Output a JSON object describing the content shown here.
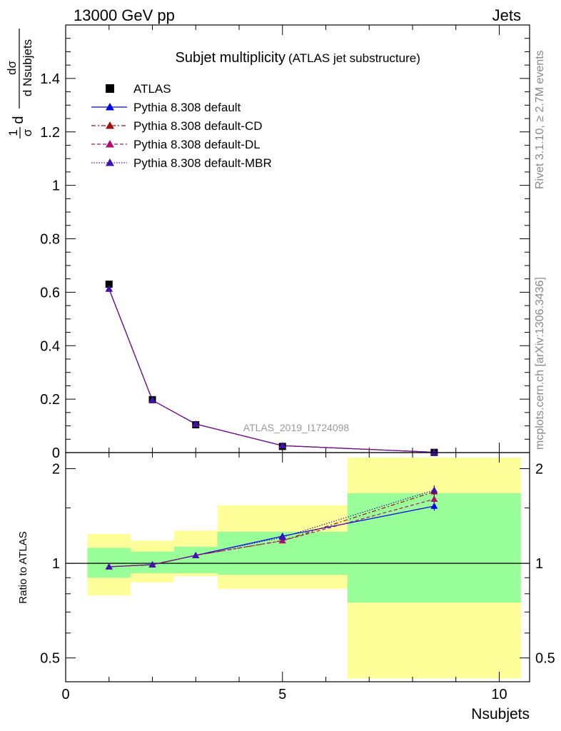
{
  "header": {
    "left": "13000 GeV pp",
    "right": "Jets"
  },
  "side_labels": {
    "rivet": "Rivet 3.1.10, ≥ 2.7M events",
    "mcplots": "mcplots.cern.ch [arXiv:1306.3436]"
  },
  "chart_data": [
    {
      "type": "line",
      "panel": "main",
      "title": "Subjet multiplicity",
      "subtitle": "(ATLAS jet substructure)",
      "analysis_tag": "ATLAS_2019_I1724098",
      "ylabel": {
        "frac": "1",
        "den": "σ",
        "dnum": "dσ",
        "dden": "d Nsubjets"
      },
      "xlim": [
        0,
        10.7
      ],
      "ylim": [
        0,
        1.6
      ],
      "yticks": [
        0,
        0.2,
        0.4,
        0.6,
        0.8,
        1,
        1.2,
        1.4
      ],
      "ytick_labels": [
        "0",
        "0.2",
        "0.4",
        "0.6",
        "0.8",
        "1",
        "1.2",
        "1.4"
      ],
      "legend_position": "top-left",
      "legend": [
        {
          "label": "ATLAS",
          "color": "#000000",
          "style": "marker-square"
        },
        {
          "label": "Pythia 8.308 default",
          "color": "#0000ee",
          "style": "solid"
        },
        {
          "label": "Pythia 8.308 default-CD",
          "color": "#a01010",
          "style": "dashdot"
        },
        {
          "label": "Pythia 8.308 default-DL",
          "color": "#b0106e",
          "style": "dashed"
        },
        {
          "label": "Pythia 8.308 default-MBR",
          "color": "#4010b0",
          "style": "dotted"
        }
      ],
      "data": {
        "name": "ATLAS",
        "points": [
          {
            "x": 1,
            "y": 0.63
          },
          {
            "x": 2,
            "y": 0.198
          },
          {
            "x": 3,
            "y": 0.104
          },
          {
            "x": 5,
            "y": 0.023
          },
          {
            "x": 8.5,
            "y": 0.0008
          }
        ]
      },
      "series": [
        {
          "name": "Pythia 8.308 default",
          "color": "#0000ee",
          "dash": "",
          "points": [
            {
              "x": 1,
              "y": 0.613
            },
            {
              "x": 2,
              "y": 0.196
            },
            {
              "x": 3,
              "y": 0.107
            },
            {
              "x": 5,
              "y": 0.026
            },
            {
              "x": 8.5,
              "y": 0.0012
            }
          ]
        },
        {
          "name": "Pythia 8.308 default-CD",
          "color": "#a01010",
          "dash": "6,3,2,3",
          "points": [
            {
              "x": 1,
              "y": 0.612
            },
            {
              "x": 2,
              "y": 0.196
            },
            {
              "x": 3,
              "y": 0.107
            },
            {
              "x": 5,
              "y": 0.026
            },
            {
              "x": 8.5,
              "y": 0.0014
            }
          ]
        },
        {
          "name": "Pythia 8.308 default-DL",
          "color": "#b0106e",
          "dash": "5,3",
          "points": [
            {
              "x": 1,
              "y": 0.612
            },
            {
              "x": 2,
              "y": 0.196
            },
            {
              "x": 3,
              "y": 0.107
            },
            {
              "x": 5,
              "y": 0.026
            },
            {
              "x": 8.5,
              "y": 0.0013
            }
          ]
        },
        {
          "name": "Pythia 8.308 default-MBR",
          "color": "#4010b0",
          "dash": "1.5,2",
          "points": [
            {
              "x": 1,
              "y": 0.612
            },
            {
              "x": 2,
              "y": 0.196
            },
            {
              "x": 3,
              "y": 0.107
            },
            {
              "x": 5,
              "y": 0.026
            },
            {
              "x": 8.5,
              "y": 0.0014
            }
          ]
        }
      ]
    },
    {
      "type": "line",
      "panel": "ratio",
      "xlabel": "Nsubjets",
      "ylabel": "Ratio to ATLAS",
      "xlim": [
        0,
        10.7
      ],
      "ylim": [
        0.42,
        2.25
      ],
      "log_y": true,
      "xticks": [
        0,
        5,
        10
      ],
      "xtick_labels": [
        "0",
        "5",
        "10"
      ],
      "yticks": [
        0.5,
        1,
        2
      ],
      "ytick_labels": [
        "0.5",
        "1",
        "2"
      ],
      "uncertainty_bands": [
        {
          "x0": 0.5,
          "x1": 1.5,
          "stat_lo": 0.9,
          "stat_hi": 1.12,
          "tot_lo": 0.79,
          "tot_hi": 1.24
        },
        {
          "x0": 1.5,
          "x1": 2.5,
          "stat_lo": 0.93,
          "stat_hi": 1.09,
          "tot_lo": 0.87,
          "tot_hi": 1.18
        },
        {
          "x0": 2.5,
          "x1": 3.5,
          "stat_lo": 0.93,
          "stat_hi": 1.13,
          "tot_lo": 0.91,
          "tot_hi": 1.27
        },
        {
          "x0": 3.5,
          "x1": 6.5,
          "stat_lo": 0.92,
          "stat_hi": 1.26,
          "tot_lo": 0.83,
          "tot_hi": 1.53
        },
        {
          "x0": 6.5,
          "x1": 10.5,
          "stat_lo": 0.75,
          "stat_hi": 1.67,
          "tot_lo": 0.43,
          "tot_hi": 2.17
        }
      ],
      "series": [
        {
          "name": "Pythia 8.308 default",
          "color": "#0000ee",
          "dash": "",
          "points": [
            {
              "x": 1,
              "y": 0.975
            },
            {
              "x": 2,
              "y": 0.99
            },
            {
              "x": 3,
              "y": 1.06
            },
            {
              "x": 5,
              "y": 1.22
            },
            {
              "x": 8.5,
              "y": 1.52
            }
          ],
          "last_err": 0.05
        },
        {
          "name": "Pythia 8.308 default-CD",
          "color": "#a01010",
          "dash": "6,3,2,3",
          "points": [
            {
              "x": 1,
              "y": 0.975
            },
            {
              "x": 2,
              "y": 0.99
            },
            {
              "x": 3,
              "y": 1.06
            },
            {
              "x": 5,
              "y": 1.18
            },
            {
              "x": 8.5,
              "y": 1.69
            }
          ],
          "last_err": 0.06
        },
        {
          "name": "Pythia 8.308 default-DL",
          "color": "#b0106e",
          "dash": "5,3",
          "points": [
            {
              "x": 1,
              "y": 0.975
            },
            {
              "x": 2,
              "y": 0.99
            },
            {
              "x": 3,
              "y": 1.06
            },
            {
              "x": 5,
              "y": 1.18
            },
            {
              "x": 8.5,
              "y": 1.6
            }
          ],
          "last_err": 0.06
        },
        {
          "name": "Pythia 8.308 default-MBR",
          "color": "#4010b0",
          "dash": "1.5,2",
          "points": [
            {
              "x": 1,
              "y": 0.975
            },
            {
              "x": 2,
              "y": 0.99
            },
            {
              "x": 3,
              "y": 1.06
            },
            {
              "x": 5,
              "y": 1.21
            },
            {
              "x": 8.5,
              "y": 1.71
            }
          ],
          "last_err": 0.06
        }
      ],
      "reference_line": 1
    }
  ]
}
